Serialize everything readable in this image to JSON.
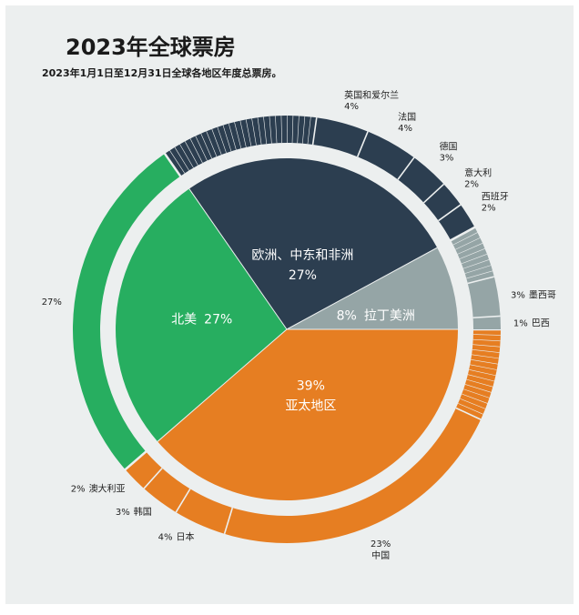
{
  "chart_data": {
    "type": "pie",
    "title": "2023年全球票房",
    "subtitle": "2023年1月1日至12月31日全球各地区年度总票房。",
    "regions": [
      {
        "name": "亚太地区",
        "percent": 39,
        "label_pct": "39%",
        "color": "#e67e22"
      },
      {
        "name": "北美",
        "percent": 27,
        "label_pct": "27%",
        "color": "#27ae60"
      },
      {
        "name": "欧洲、中东和非洲",
        "percent": 27,
        "label_pct": "27%",
        "color": "#2c3e50"
      },
      {
        "name": "拉丁美洲",
        "percent": 8,
        "label_pct": "8%",
        "color": "#95a5a6"
      }
    ],
    "markets": [
      {
        "region": "亚太地区",
        "name": "中国",
        "percent": 23,
        "label": "23%"
      },
      {
        "region": "亚太地区",
        "name": "日本",
        "percent": 4,
        "label": "4%"
      },
      {
        "region": "亚太地区",
        "name": "韩国",
        "percent": 3,
        "label": "3%"
      },
      {
        "region": "亚太地区",
        "name": "澳大利亚",
        "percent": 2,
        "label": "2%"
      },
      {
        "region": "北美",
        "name": "",
        "percent": 27,
        "label": "27%"
      },
      {
        "region": "欧洲、中东和非洲",
        "name": "英国和爱尔兰",
        "percent": 4,
        "label": "4%"
      },
      {
        "region": "欧洲、中东和非洲",
        "name": "法国",
        "percent": 4,
        "label": "4%"
      },
      {
        "region": "欧洲、中东和非洲",
        "name": "德国",
        "percent": 3,
        "label": "3%"
      },
      {
        "region": "欧洲、中东和非洲",
        "name": "意大利",
        "percent": 2,
        "label": "2%"
      },
      {
        "region": "欧洲、中东和非洲",
        "name": "西班牙",
        "percent": 2,
        "label": "2%"
      },
      {
        "region": "拉丁美洲",
        "name": "墨西哥",
        "percent": 3,
        "label": "3%"
      },
      {
        "region": "拉丁美洲",
        "name": "巴西",
        "percent": 1,
        "label": "1%"
      }
    ],
    "background_color": "#ecefef"
  }
}
